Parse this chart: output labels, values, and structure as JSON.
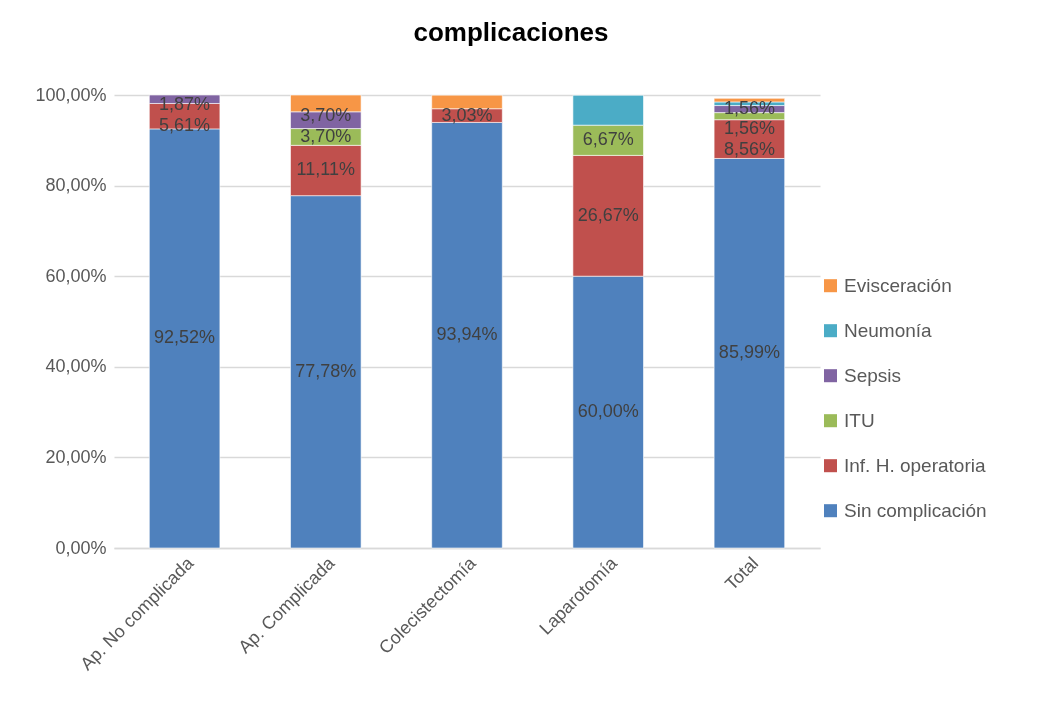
{
  "chart_data": {
    "type": "bar",
    "title": "complicaciones",
    "stacked": true,
    "categories": [
      "Ap. No complicada",
      "Ap. Complicada",
      "Colecistectomía",
      "Laparotomía",
      "Total"
    ],
    "series": [
      {
        "name": "Sin complicación",
        "color": "#4f81bd",
        "values": [
          92.52,
          77.78,
          93.94,
          60.0,
          85.99
        ],
        "value_labels": [
          "92,52%",
          "77,78%",
          "93,94%",
          "60,00%",
          "85,99%"
        ]
      },
      {
        "name": "Inf. H. operatoria",
        "color": "#c0504d",
        "values": [
          5.61,
          11.11,
          3.03,
          26.67,
          8.56
        ],
        "value_labels": [
          "5,61%",
          "11,11%",
          "3,03%",
          "26,67%",
          "8,56%"
        ]
      },
      {
        "name": "ITU",
        "color": "#9bbb59",
        "values": [
          null,
          3.7,
          null,
          6.67,
          1.56
        ],
        "value_labels": [
          null,
          "3,70%",
          null,
          "6,67%",
          "1,56%"
        ]
      },
      {
        "name": "Sepsis",
        "color": "#8064a2",
        "values": [
          1.87,
          3.7,
          null,
          null,
          1.56
        ],
        "value_labels": [
          "1,87%",
          "3,70%",
          null,
          null,
          "1,56%"
        ]
      },
      {
        "name": "Neumonía",
        "color": "#4bacc6",
        "values": [
          null,
          null,
          null,
          6.6,
          0.8
        ]
      },
      {
        "name": "Evisceración",
        "color": "#f79646",
        "values": [
          null,
          3.7,
          3.0,
          null,
          0.8
        ]
      }
    ],
    "ylim": [
      0,
      100
    ],
    "yticks": [
      {
        "value": 0,
        "label": "0,00%"
      },
      {
        "value": 20,
        "label": "20,00%"
      },
      {
        "value": 40,
        "label": "40,00%"
      },
      {
        "value": 60,
        "label": "60,00%"
      },
      {
        "value": 80,
        "label": "80,00%"
      },
      {
        "value": 100,
        "label": "100,00%"
      }
    ],
    "grid": "y",
    "legend": "right"
  }
}
